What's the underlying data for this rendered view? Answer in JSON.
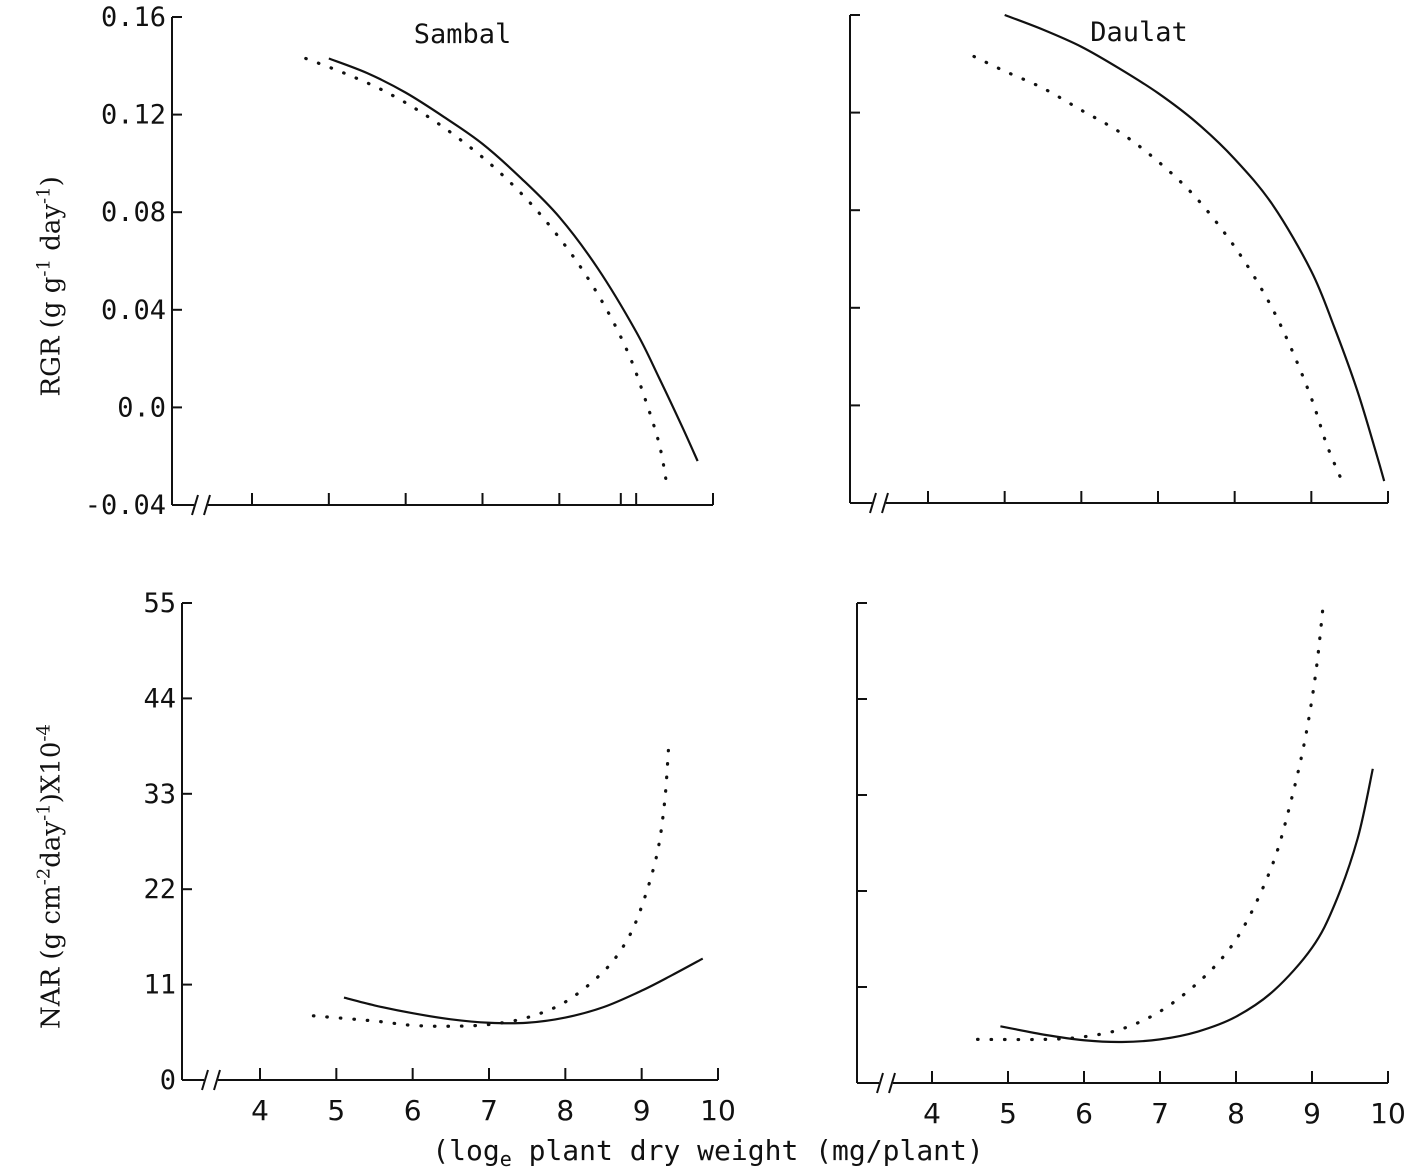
{
  "xlabel": {
    "pre": "(log",
    "sub": "e",
    "post": " plant dry weight (mg/plant)"
  },
  "ylabel_rgr": {
    "pre": "RGR (g g",
    "sup1": "-1",
    "mid": " day",
    "sup2": "-1",
    "post": ")"
  },
  "ylabel_nar": {
    "pre": "NAR (g cm",
    "sup1": "-2",
    "mid": "day",
    "sup2": "-1",
    "post": ")X10",
    "sup3": "-4"
  },
  "chart_data": [
    {
      "id": "rgr-sambal",
      "type": "line",
      "title": "Sambal",
      "ylim": [
        -0.04,
        0.16
      ],
      "xlim": [
        3.2,
        10.0
      ],
      "yticks": [
        "0.16",
        "0.12",
        "0.08",
        "0.04",
        "0.0",
        "-0.04"
      ],
      "ytick_values": [
        0.16,
        0.12,
        0.08,
        0.04,
        0.0,
        -0.04
      ],
      "xticks": [
        4,
        5,
        6,
        7,
        8,
        8.8,
        9,
        10
      ],
      "show_x_labels": false,
      "show_y_labels": true,
      "series": [
        {
          "style": "solid",
          "x": [
            5.0,
            5.5,
            6.0,
            6.5,
            7.0,
            7.5,
            8.0,
            8.5,
            9.0,
            9.3,
            9.6,
            9.8
          ],
          "y": [
            0.143,
            0.137,
            0.129,
            0.119,
            0.108,
            0.094,
            0.078,
            0.057,
            0.031,
            0.012,
            -0.008,
            -0.022
          ]
        },
        {
          "style": "dotted",
          "x": [
            4.7,
            5.2,
            5.7,
            6.2,
            6.7,
            7.2,
            7.7,
            8.2,
            8.6,
            8.9,
            9.1,
            9.3,
            9.4
          ],
          "y": [
            0.143,
            0.137,
            0.13,
            0.121,
            0.11,
            0.097,
            0.081,
            0.061,
            0.041,
            0.022,
            0.005,
            -0.015,
            -0.032
          ]
        }
      ]
    },
    {
      "id": "rgr-daulat",
      "type": "line",
      "title": "Daulat",
      "ylim": [
        -0.04,
        0.16
      ],
      "xlim": [
        3.2,
        10.0
      ],
      "yticks": [
        "0.16",
        "0.12",
        "0.08",
        "0.04",
        "0.0",
        "-0.04"
      ],
      "ytick_values": [
        0.16,
        0.12,
        0.08,
        0.04,
        0.0,
        -0.04
      ],
      "xticks": [
        4,
        5,
        6,
        7,
        8,
        9,
        10
      ],
      "show_x_labels": false,
      "show_y_labels": false,
      "series": [
        {
          "style": "solid",
          "x": [
            5.0,
            5.5,
            6.0,
            6.5,
            7.0,
            7.5,
            8.0,
            8.5,
            9.0,
            9.3,
            9.6,
            9.85,
            9.95
          ],
          "y": [
            0.16,
            0.154,
            0.147,
            0.138,
            0.128,
            0.116,
            0.101,
            0.082,
            0.055,
            0.032,
            0.006,
            -0.02,
            -0.031
          ]
        },
        {
          "style": "dotted",
          "x": [
            4.6,
            5.0,
            5.5,
            6.0,
            6.5,
            7.0,
            7.5,
            8.0,
            8.4,
            8.7,
            9.0,
            9.2,
            9.4
          ],
          "y": [
            0.143,
            0.137,
            0.13,
            0.121,
            0.112,
            0.1,
            0.085,
            0.065,
            0.045,
            0.026,
            0.003,
            -0.016,
            -0.031
          ]
        }
      ]
    },
    {
      "id": "nar-sambal",
      "type": "line",
      "title": "",
      "ylim": [
        0,
        55
      ],
      "xlim": [
        3.2,
        10.0
      ],
      "yticks": [
        "55",
        "44",
        "33",
        "22",
        "11",
        "0"
      ],
      "ytick_values": [
        55,
        44,
        33,
        22,
        11,
        0
      ],
      "xticks": [
        4,
        5,
        6,
        7,
        8,
        9,
        10
      ],
      "xtick_labels": [
        "4",
        "5",
        "6",
        "7",
        "8",
        "9",
        "10"
      ],
      "show_x_labels": true,
      "show_y_labels": true,
      "series": [
        {
          "style": "solid",
          "x": [
            5.1,
            5.5,
            6.0,
            6.5,
            7.0,
            7.5,
            8.0,
            8.5,
            9.0,
            9.4,
            9.8
          ],
          "y": [
            9.5,
            8.6,
            7.7,
            7.0,
            6.6,
            6.6,
            7.2,
            8.4,
            10.3,
            12.1,
            14.0
          ]
        },
        {
          "style": "dotted",
          "x": [
            4.7,
            5.5,
            6.0,
            6.5,
            7.0,
            7.5,
            8.0,
            8.5,
            8.8,
            9.0,
            9.2,
            9.3,
            9.35
          ],
          "y": [
            7.4,
            6.8,
            6.3,
            6.2,
            6.4,
            7.2,
            9.0,
            12.5,
            16.0,
            20.0,
            26.0,
            32.0,
            38.0
          ]
        }
      ]
    },
    {
      "id": "nar-daulat",
      "type": "line",
      "title": "",
      "ylim": [
        0,
        55
      ],
      "xlim": [
        3.2,
        10.0
      ],
      "yticks": [
        "55",
        "44",
        "33",
        "22",
        "11",
        "0"
      ],
      "ytick_values": [
        55,
        44,
        33,
        22,
        11,
        0
      ],
      "xticks": [
        4,
        5,
        6,
        7,
        8,
        9,
        10
      ],
      "xtick_labels": [
        "4",
        "5",
        "6",
        "7",
        "8",
        "9",
        "10"
      ],
      "show_x_labels": true,
      "show_y_labels": false,
      "series": [
        {
          "style": "solid",
          "x": [
            4.9,
            5.5,
            6.0,
            6.5,
            7.0,
            7.5,
            8.0,
            8.5,
            9.0,
            9.3,
            9.6,
            9.8
          ],
          "y": [
            6.5,
            5.5,
            4.9,
            4.7,
            5.0,
            5.9,
            7.6,
            10.6,
            15.5,
            20.5,
            28.0,
            36.0
          ]
        },
        {
          "style": "dotted",
          "x": [
            4.6,
            5.5,
            6.0,
            6.5,
            7.0,
            7.5,
            7.9,
            8.2,
            8.5,
            8.7,
            8.9,
            9.05,
            9.15
          ],
          "y": [
            5.0,
            5.0,
            5.3,
            6.2,
            8.2,
            11.5,
            15.2,
            19.5,
            25.5,
            31.5,
            39.0,
            47.0,
            55.0
          ]
        }
      ]
    }
  ]
}
